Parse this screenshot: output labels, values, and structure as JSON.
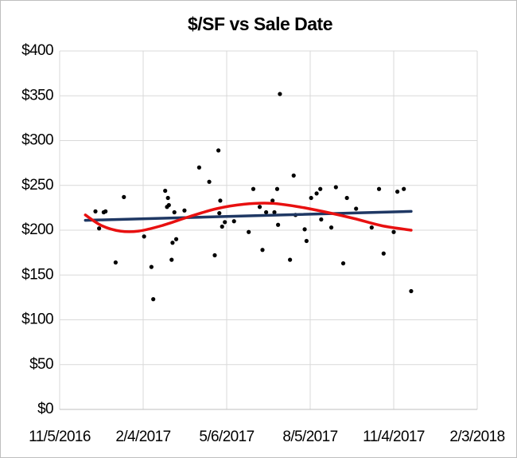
{
  "chart_data": {
    "type": "scatter",
    "title": "$/SF vs Sale Date",
    "color": "#000000",
    "x": [
      42718,
      42727,
      42729,
      42722,
      42740,
      42749,
      42771,
      42779,
      42781,
      42794,
      42797,
      42798,
      42796,
      42802,
      42806,
      42801,
      42804,
      42815,
      42831,
      42842,
      42848,
      42852,
      42853,
      42854,
      42856,
      42859,
      42869,
      42885,
      42890,
      42897,
      42900,
      42904,
      42911,
      42913,
      42916,
      42917,
      42919,
      42930,
      42934,
      42936,
      42946,
      42948,
      42953,
      42959,
      42963,
      42964,
      42975,
      42980,
      42988,
      42992,
      43002,
      43019,
      43027,
      43032,
      43043,
      43047,
      43054,
      43062
    ],
    "values": [
      221,
      220,
      221,
      202,
      164,
      237,
      193,
      159,
      123,
      244,
      236,
      228,
      226,
      186,
      190,
      167,
      220,
      222,
      270,
      254,
      172,
      289,
      219,
      233,
      204,
      209,
      210,
      198,
      246,
      226,
      178,
      220,
      233,
      220,
      246,
      206,
      352,
      167,
      261,
      217,
      201,
      188,
      236,
      241,
      246,
      212,
      203,
      248,
      163,
      236,
      224,
      203,
      246,
      174,
      198,
      243,
      246,
      132
    ],
    "trendlines": [
      {
        "color": "#1f3864",
        "x": [
          42707,
          43062
        ],
        "values": [
          211,
          221
        ]
      },
      {
        "color": "#e81010",
        "x": [
          42707,
          42725,
          42745,
          42765,
          42790,
          42820,
          42850,
          42880,
          42910,
          42940,
          42970,
          43000,
          43030,
          43062
        ],
        "values": [
          217,
          205,
          199,
          199,
          205,
          215,
          224,
          229,
          230,
          226,
          220,
          213,
          205,
          200
        ]
      }
    ],
    "xlim": [
      42679,
      43134
    ],
    "xticks": [
      {
        "value": 42679,
        "label": "11/5/2016"
      },
      {
        "value": 42770,
        "label": "2/4/2017"
      },
      {
        "value": 42861,
        "label": "5/6/2017"
      },
      {
        "value": 42952,
        "label": "8/5/2017"
      },
      {
        "value": 43043,
        "label": "11/4/2017"
      },
      {
        "value": 43134,
        "label": "2/3/2018"
      }
    ],
    "ylim": [
      0,
      400
    ],
    "yticks": [
      {
        "value": 0,
        "label": "$0"
      },
      {
        "value": 50,
        "label": "$50"
      },
      {
        "value": 100,
        "label": "$100"
      },
      {
        "value": 150,
        "label": "$150"
      },
      {
        "value": 200,
        "label": "$200"
      },
      {
        "value": 250,
        "label": "$250"
      },
      {
        "value": 300,
        "label": "$300"
      },
      {
        "value": 350,
        "label": "$350"
      },
      {
        "value": 400,
        "label": "$400"
      }
    ],
    "grid": true
  }
}
